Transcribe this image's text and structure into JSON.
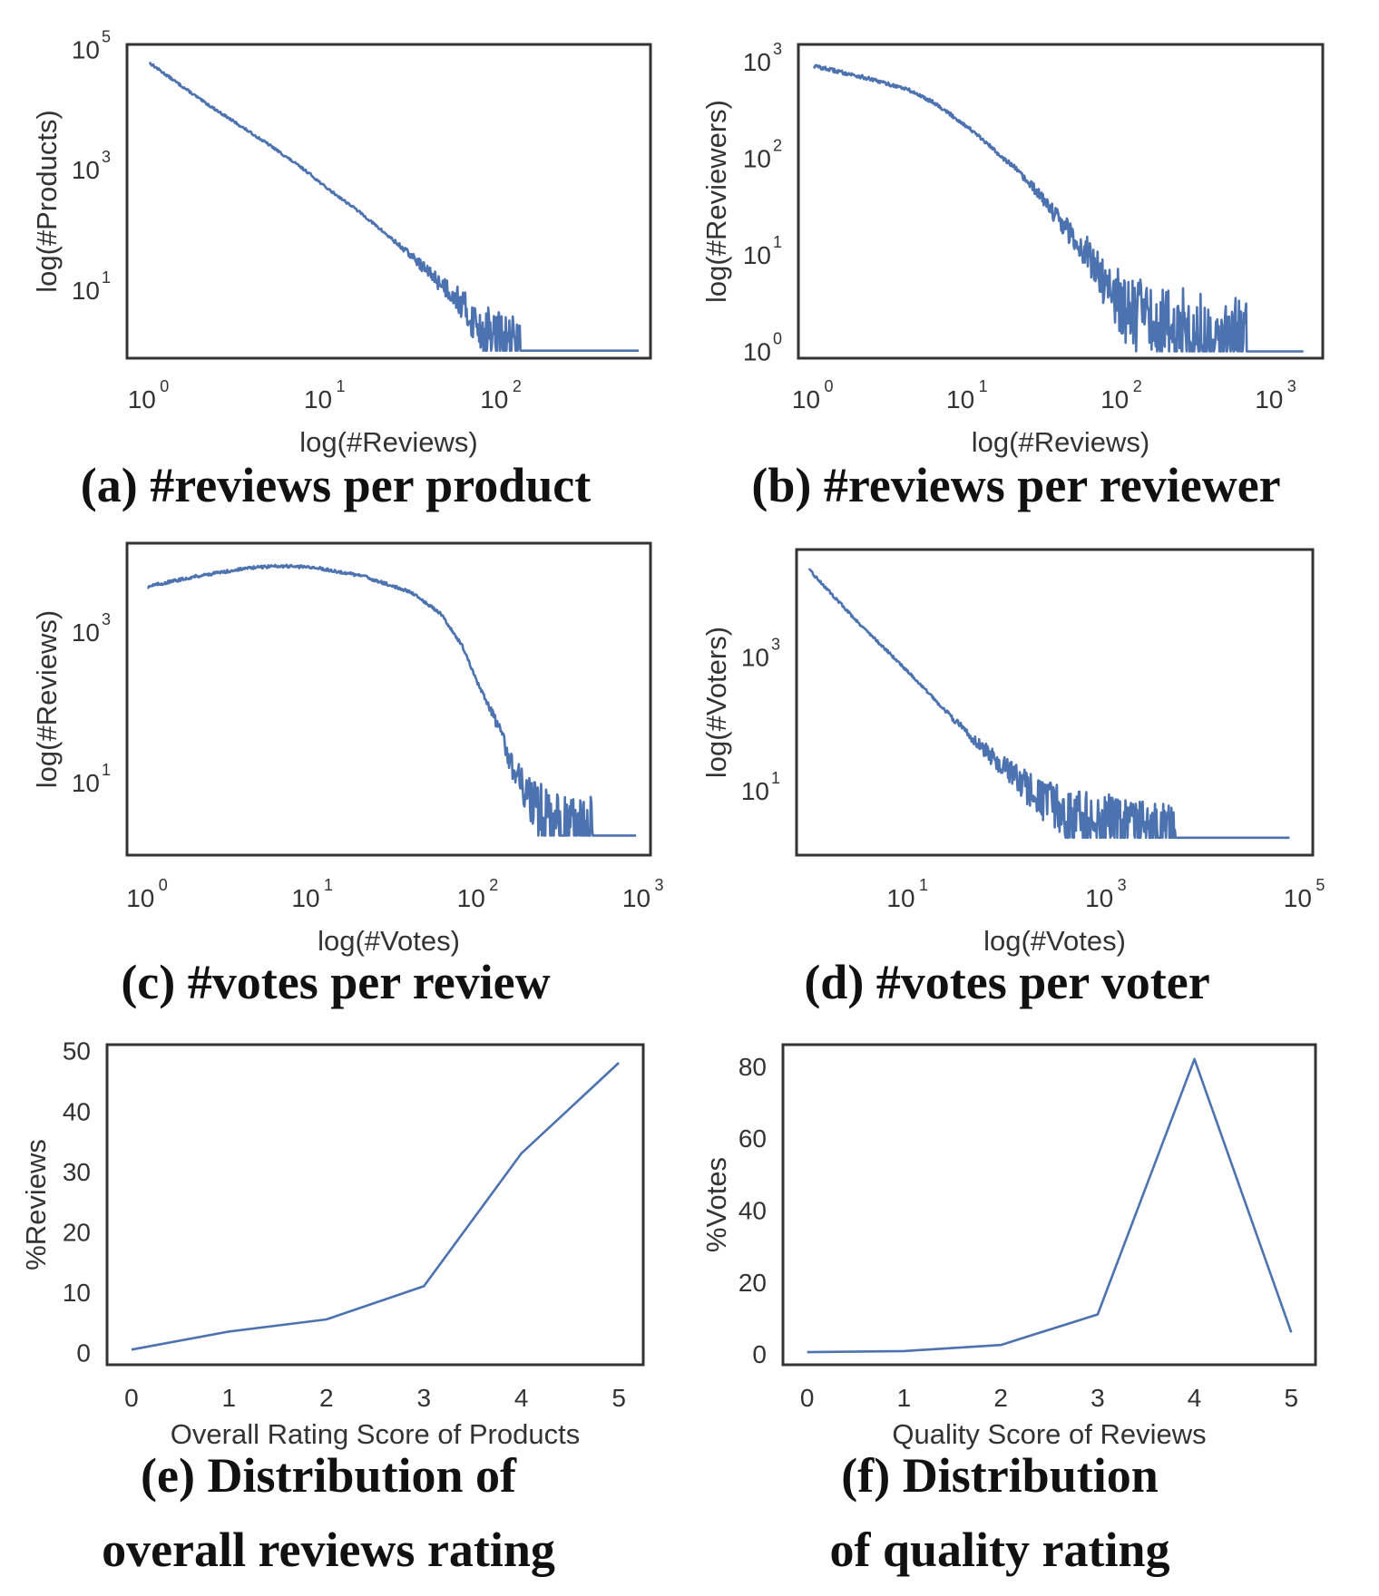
{
  "figure": {
    "series_color": "#4c72b0"
  },
  "chart_data": [
    {
      "id": "a",
      "type": "line",
      "title": "(a) #reviews per product",
      "xlabel": "log(#Reviews)",
      "ylabel": "log(#Products)",
      "xscale": "log",
      "yscale": "log",
      "xlim": [
        0.75,
        700
      ],
      "ylim": [
        0.75,
        120000
      ],
      "xticks": [
        {
          "base": "10",
          "exp": "0",
          "value": 1
        },
        {
          "base": "10",
          "exp": "1",
          "value": 10
        },
        {
          "base": "10",
          "exp": "2",
          "value": 100
        }
      ],
      "yticks": [
        {
          "base": "10",
          "exp": "5",
          "value": 100000
        },
        {
          "base": "10",
          "exp": "3",
          "value": 1000
        },
        {
          "base": "10",
          "exp": "1",
          "value": 10
        }
      ],
      "grid": false,
      "series": [
        {
          "name": "products",
          "x": [
            1,
            2,
            5,
            8,
            10,
            15,
            20,
            30,
            40,
            55,
            65,
            80,
            100,
            130,
            600
          ],
          "y": [
            60000,
            14000,
            2400,
            900,
            520,
            220,
            110,
            40,
            18,
            8,
            4,
            2,
            1.5,
            1,
            1
          ]
        }
      ]
    },
    {
      "id": "b",
      "type": "line",
      "title": "(b) #reviews per reviewer",
      "xlabel": "log(#Reviews)",
      "ylabel": "log(#Reviewers)",
      "xscale": "log",
      "yscale": "log",
      "xlim": [
        0.8,
        2000
      ],
      "ylim": [
        0.85,
        1500
      ],
      "xticks": [
        {
          "base": "10",
          "exp": "0",
          "value": 1
        },
        {
          "base": "10",
          "exp": "1",
          "value": 10
        },
        {
          "base": "10",
          "exp": "2",
          "value": 100
        },
        {
          "base": "10",
          "exp": "3",
          "value": 1000
        }
      ],
      "yticks": [
        {
          "base": "10",
          "exp": "3",
          "value": 1000
        },
        {
          "base": "10",
          "exp": "2",
          "value": 100
        },
        {
          "base": "10",
          "exp": "1",
          "value": 10
        },
        {
          "base": "10",
          "exp": "0",
          "value": 1
        }
      ],
      "grid": false,
      "series": [
        {
          "name": "reviewers",
          "x": [
            1,
            2,
            4,
            6,
            10,
            15,
            20,
            30,
            40,
            60,
            80,
            100,
            150,
            250,
            400,
            650,
            1500
          ],
          "y": [
            900,
            700,
            520,
            380,
            210,
            120,
            80,
            40,
            22,
            10,
            5,
            3,
            2,
            1.5,
            1.2,
            1.3,
            1
          ]
        }
      ]
    },
    {
      "id": "c",
      "type": "line",
      "title": "(c) #votes per review",
      "xlabel": "log(#Votes)",
      "ylabel": "log(#Reviews)",
      "xscale": "log",
      "yscale": "log",
      "xlim": [
        0.75,
        1100
      ],
      "ylim": [
        1.1,
        15000
      ],
      "xticks": [
        {
          "base": "10",
          "exp": "0",
          "value": 1
        },
        {
          "base": "10",
          "exp": "1",
          "value": 10
        },
        {
          "base": "10",
          "exp": "2",
          "value": 100
        },
        {
          "base": "10",
          "exp": "3",
          "value": 1000
        }
      ],
      "yticks": [
        {
          "base": "10",
          "exp": "3",
          "value": 1000
        },
        {
          "base": "10",
          "exp": "1",
          "value": 10
        }
      ],
      "grid": false,
      "series": [
        {
          "name": "reviews",
          "x": [
            1,
            2,
            4,
            6,
            10,
            20,
            40,
            60,
            80,
            100,
            130,
            160,
            200,
            250,
            300,
            500,
            900
          ],
          "y": [
            4000,
            5500,
            7000,
            7500,
            7200,
            5500,
            3300,
            1700,
            650,
            200,
            60,
            18,
            6,
            3,
            2,
            2,
            2
          ]
        }
      ]
    },
    {
      "id": "d",
      "type": "line",
      "title": "(d) #votes per voter",
      "xlabel": "log(#Votes)",
      "ylabel": "log(#Voters)",
      "xscale": "log",
      "yscale": "log",
      "xlim": [
        0.75,
        120000
      ],
      "ylim": [
        1.1,
        40000
      ],
      "xticks": [
        {
          "base": "10",
          "exp": "1",
          "value": 10
        },
        {
          "base": "10",
          "exp": "3",
          "value": 1000
        },
        {
          "base": "10",
          "exp": "5",
          "value": 100000
        }
      ],
      "yticks": [
        {
          "base": "10",
          "exp": "3",
          "value": 1000
        },
        {
          "base": "10",
          "exp": "1",
          "value": 10
        }
      ],
      "grid": false,
      "series": [
        {
          "name": "voters",
          "x": [
            1,
            3,
            10,
            30,
            60,
            100,
            200,
            400,
            800,
            2000,
            5000,
            70000
          ],
          "y": [
            20000,
            3500,
            600,
            110,
            40,
            20,
            8,
            4,
            3,
            2.5,
            2,
            2
          ]
        }
      ]
    },
    {
      "id": "e",
      "type": "line",
      "title": "(e) Distribution of overall reviews rating",
      "title_lines": [
        "(e) Distribution of",
        "overall reviews rating"
      ],
      "xlabel": "Overall Rating Score of Products",
      "ylabel": "%Reviews",
      "xlim": [
        -0.25,
        5.25
      ],
      "ylim": [
        -2,
        51
      ],
      "xticks": [
        0,
        1,
        2,
        3,
        4,
        5
      ],
      "yticks": [
        0,
        10,
        20,
        30,
        40,
        50
      ],
      "grid": false,
      "series": [
        {
          "name": "%Reviews",
          "x": [
            0,
            1,
            2,
            3,
            4,
            5
          ],
          "y": [
            0.5,
            3.5,
            5.5,
            11,
            33,
            48
          ]
        }
      ]
    },
    {
      "id": "f",
      "type": "line",
      "title": "(f) Distribution of quality rating",
      "title_lines": [
        "(f) Distribution",
        "of quality rating"
      ],
      "xlabel": "Quality Score of Reviews",
      "ylabel": "%Votes",
      "xlim": [
        -0.25,
        5.25
      ],
      "ylim": [
        -3,
        86
      ],
      "xticks": [
        0,
        1,
        2,
        3,
        4,
        5
      ],
      "yticks": [
        0,
        20,
        40,
        60,
        80
      ],
      "grid": false,
      "series": [
        {
          "name": "%Votes",
          "x": [
            0,
            1,
            2,
            3,
            4,
            5
          ],
          "y": [
            0.5,
            0.8,
            2.5,
            11,
            82,
            6
          ]
        }
      ]
    }
  ]
}
